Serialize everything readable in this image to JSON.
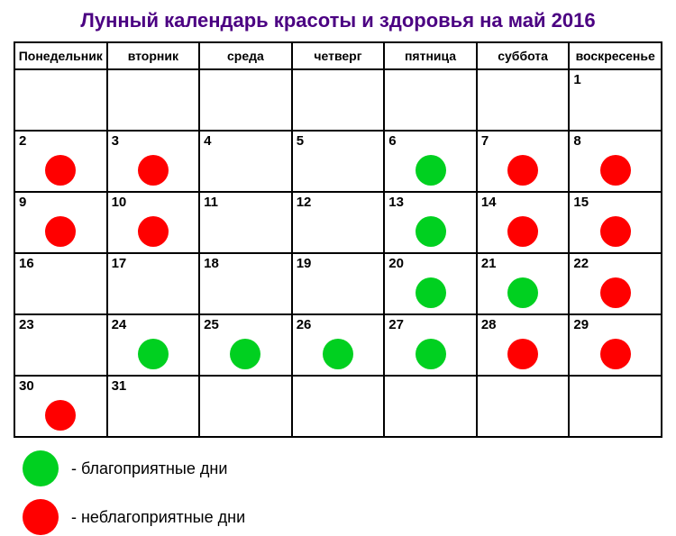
{
  "title": "Лунный календарь красоты и здоровья на май 2016",
  "colors": {
    "title": "#4b0082",
    "good": "#00d020",
    "bad": "#ff0000",
    "border": "#000000",
    "background": "#ffffff"
  },
  "headers": [
    "Понедельник",
    "вторник",
    "среда",
    "четверг",
    "пятница",
    "суббота",
    "воскресенье"
  ],
  "weeks": [
    [
      {
        "day": null,
        "mark": null
      },
      {
        "day": null,
        "mark": null
      },
      {
        "day": null,
        "mark": null
      },
      {
        "day": null,
        "mark": null
      },
      {
        "day": null,
        "mark": null
      },
      {
        "day": null,
        "mark": null
      },
      {
        "day": 1,
        "mark": null
      }
    ],
    [
      {
        "day": 2,
        "mark": "bad"
      },
      {
        "day": 3,
        "mark": "bad"
      },
      {
        "day": 4,
        "mark": null
      },
      {
        "day": 5,
        "mark": null
      },
      {
        "day": 6,
        "mark": "good"
      },
      {
        "day": 7,
        "mark": "bad"
      },
      {
        "day": 8,
        "mark": "bad"
      }
    ],
    [
      {
        "day": 9,
        "mark": "bad"
      },
      {
        "day": 10,
        "mark": "bad"
      },
      {
        "day": 11,
        "mark": null
      },
      {
        "day": 12,
        "mark": null
      },
      {
        "day": 13,
        "mark": "good"
      },
      {
        "day": 14,
        "mark": "bad"
      },
      {
        "day": 15,
        "mark": "bad"
      }
    ],
    [
      {
        "day": 16,
        "mark": null
      },
      {
        "day": 17,
        "mark": null
      },
      {
        "day": 18,
        "mark": null
      },
      {
        "day": 19,
        "mark": null
      },
      {
        "day": 20,
        "mark": "good"
      },
      {
        "day": 21,
        "mark": "good"
      },
      {
        "day": 22,
        "mark": "bad"
      }
    ],
    [
      {
        "day": 23,
        "mark": null
      },
      {
        "day": 24,
        "mark": "good"
      },
      {
        "day": 25,
        "mark": "good"
      },
      {
        "day": 26,
        "mark": "good"
      },
      {
        "day": 27,
        "mark": "good"
      },
      {
        "day": 28,
        "mark": "bad"
      },
      {
        "day": 29,
        "mark": "bad"
      }
    ],
    [
      {
        "day": 30,
        "mark": "bad"
      },
      {
        "day": 31,
        "mark": null
      },
      {
        "day": null,
        "mark": null
      },
      {
        "day": null,
        "mark": null
      },
      {
        "day": null,
        "mark": null
      },
      {
        "day": null,
        "mark": null
      },
      {
        "day": null,
        "mark": null
      }
    ]
  ],
  "legend": {
    "good": "- благоприятные дни",
    "bad": "- неблагоприятные дни"
  }
}
